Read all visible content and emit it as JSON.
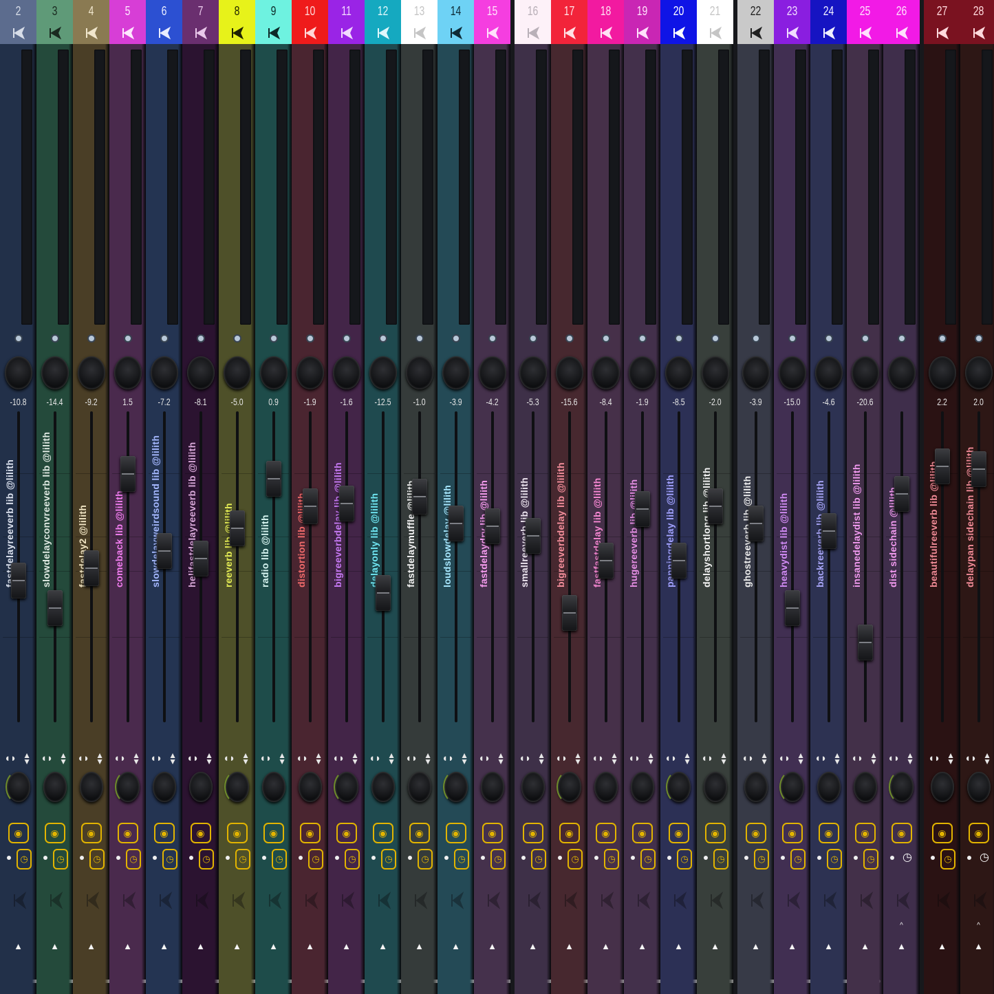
{
  "mixer": {
    "tracks": [
      {
        "number": "2",
        "name": "fastdelayreeverb lib @lilith",
        "volume": "-10.8",
        "header": "#5c6c8e",
        "body": "#223049",
        "num_color": "#d7dde8",
        "name_color": "#dde3f0",
        "fader": 0.55,
        "group": 0
      },
      {
        "number": "3",
        "name": "slowdelayconvreeverb lib @lilith",
        "volume": "-14.4",
        "header": "#5f9a78",
        "body": "#244a3b",
        "num_color": "#1a2a20",
        "name_color": "#dfe9e2",
        "fader": 0.66,
        "group": 0
      },
      {
        "number": "4",
        "name": "fastdelay2 @lilith",
        "volume": "-9.2",
        "header": "#8a7a52",
        "body": "#4a3e26",
        "num_color": "#f0e6cc",
        "name_color": "#f0e4c2",
        "fader": 0.5,
        "group": 0
      },
      {
        "number": "5",
        "name": "comeback lib @lilith",
        "volume": "1.5",
        "header": "#d73ed6",
        "body": "#4a2a4d",
        "num_color": "#ffe6ff",
        "name_color": "#f27ef0",
        "fader": 0.12,
        "group": 0
      },
      {
        "number": "6",
        "name": "slowdelayweirdsound lib @lilith",
        "volume": "-7.2",
        "header": "#2c50d2",
        "body": "#243452",
        "num_color": "#e8ecff",
        "name_color": "#a5b8ff",
        "fader": 0.43,
        "group": 0
      },
      {
        "number": "7",
        "name": "helifastdelayreeverb lib @lilith",
        "volume": "-8.1",
        "header": "#6a2f6f",
        "body": "#2b1330",
        "num_color": "#e9c7ea",
        "name_color": "#d8a8d8",
        "fader": 0.46,
        "group": 0
      },
      {
        "number": "8",
        "name": "reeverb lib @lilith",
        "volume": "-5.0",
        "header": "#e7f21a",
        "body": "#4e5029",
        "num_color": "#1f2300",
        "name_color": "#e6ee55",
        "fader": 0.34,
        "group": 0
      },
      {
        "number": "9",
        "name": "radio lib @lilith",
        "volume": "0.9",
        "header": "#6ef2e0",
        "body": "#1e4c4a",
        "num_color": "#0d2a28",
        "name_color": "#d6f4f0",
        "fader": 0.14,
        "group": 0
      },
      {
        "number": "10",
        "name": "distortion lib @lilith",
        "volume": "-1.9",
        "header": "#ef1b1b",
        "body": "#4a2530",
        "num_color": "#ffd6d6",
        "name_color": "#f06a6a",
        "fader": 0.25,
        "group": 0
      },
      {
        "number": "11",
        "name": "bigreeverbdelay lib @lilith",
        "volume": "-1.6",
        "header": "#9a24e6",
        "body": "#432548",
        "num_color": "#f2d9ff",
        "name_color": "#c77af5",
        "fader": 0.24,
        "group": 0
      },
      {
        "number": "12",
        "name": "delayonly lib @lilith",
        "volume": "-12.5",
        "header": "#15a9c0",
        "body": "#1f4a4f",
        "num_color": "#dff7fb",
        "name_color": "#6fe6f2",
        "fader": 0.6,
        "group": 0
      },
      {
        "number": "13",
        "name": "fastdelaymuffle @lilith",
        "volume": "-1.0",
        "header": "#ffffff",
        "body": "#353b3a",
        "num_color": "#c5c5c5",
        "name_color": "#f4f4f4",
        "fader": 0.21,
        "group": 0
      },
      {
        "number": "14",
        "name": "loudslowdelay @lilith",
        "volume": "-3.9",
        "header": "#6ed2f5",
        "body": "#244a56",
        "num_color": "#0f2b36",
        "name_color": "#a7e8ff",
        "fader": 0.32,
        "group": 0
      },
      {
        "number": "15",
        "name": "fastdelaydry lib @lilith",
        "volume": "-4.2",
        "header": "#f53ee0",
        "body": "#45314c",
        "num_color": "#ffe2fb",
        "name_color": "#f79df0",
        "fader": 0.33,
        "group": 0
      },
      {
        "number": "16",
        "name": "smallreeverb lib @lilith",
        "volume": "-5.3",
        "header": "#fdf1f8",
        "body": "#3e3048",
        "num_color": "#b9b0b8",
        "name_color": "#ebe3ee",
        "fader": 0.37,
        "group": 1
      },
      {
        "number": "17",
        "name": "bigreeverbdelay lib @lilith",
        "volume": "-15.6",
        "header": "#f2243a",
        "body": "#47282f",
        "num_color": "#ffe0e4",
        "name_color": "#f58f9c",
        "fader": 0.68,
        "group": 1
      },
      {
        "number": "18",
        "name": "fastfastdelay lib @lilith",
        "volume": "-8.4",
        "header": "#f21aa0",
        "body": "#463049",
        "num_color": "#ffe1f3",
        "name_color": "#f687d2",
        "fader": 0.47,
        "group": 1
      },
      {
        "number": "19",
        "name": "hugereeverb lib @lilith",
        "volume": "-1.9",
        "header": "#c926b4",
        "body": "#43304b",
        "num_color": "#ffe1fb",
        "name_color": "#e78fe6",
        "fader": 0.26,
        "group": 1
      },
      {
        "number": "20",
        "name": "panningdelay lib @lilith",
        "volume": "-8.5",
        "header": "#0f14e6",
        "body": "#2c3055",
        "num_color": "#ffffff",
        "name_color": "#a2a2ff",
        "fader": 0.47,
        "group": 1
      },
      {
        "number": "21",
        "name": "delayshortlong lib @lilith",
        "volume": "-2.0",
        "header": "#ffffff",
        "body": "#383f3b",
        "num_color": "#c5c5c5",
        "name_color": "#f4f4f4",
        "fader": 0.25,
        "group": 1
      },
      {
        "number": "22",
        "name": "ghostreeverb lib @lilith",
        "volume": "-3.9",
        "header": "#c9c9c9",
        "body": "#373a47",
        "num_color": "#202020",
        "name_color": "#ededed",
        "fader": 0.32,
        "group": 2
      },
      {
        "number": "23",
        "name": "heavydist lib @lilith",
        "volume": "-15.0",
        "header": "#8a1ee0",
        "body": "#412f52",
        "num_color": "#f1ddff",
        "name_color": "#d38cf6",
        "fader": 0.66,
        "group": 2
      },
      {
        "number": "24",
        "name": "backreeverb lib @lilith",
        "volume": "-4.6",
        "header": "#1614c2",
        "body": "#2d3252",
        "num_color": "#f0f0ff",
        "name_color": "#a8a5f7",
        "fader": 0.35,
        "group": 2
      },
      {
        "number": "25",
        "name": "insanedelaydist lib @lilith",
        "volume": "-20.6",
        "header": "#f21ae6",
        "body": "#433049",
        "num_color": "#ffe0fd",
        "name_color": "#f29af0",
        "fader": 0.8,
        "group": 2
      },
      {
        "number": "26",
        "name": "dist sidechain @lilith",
        "volume": "",
        "header": "#f21ae6",
        "body": "#3f2e4b",
        "num_color": "#ffe0fd",
        "name_color": "#f29af0",
        "fader": 0.2,
        "group": 2
      },
      {
        "number": "27",
        "name": "beautifulreeverb lib @lilith",
        "volume": "2.2",
        "header": "#7a1220",
        "body": "#2a1213",
        "num_color": "#ffd9dd",
        "name_color": "#f08a96",
        "fader": 0.09,
        "group": 3
      },
      {
        "number": "28",
        "name": "delaypan sidechain lib @lilith",
        "volume": "2.0",
        "header": "#7a1220",
        "body": "#2d1715",
        "num_color": "#ffd9dd",
        "name_color": "#f08a96",
        "fader": 0.1,
        "group": 3
      }
    ]
  }
}
